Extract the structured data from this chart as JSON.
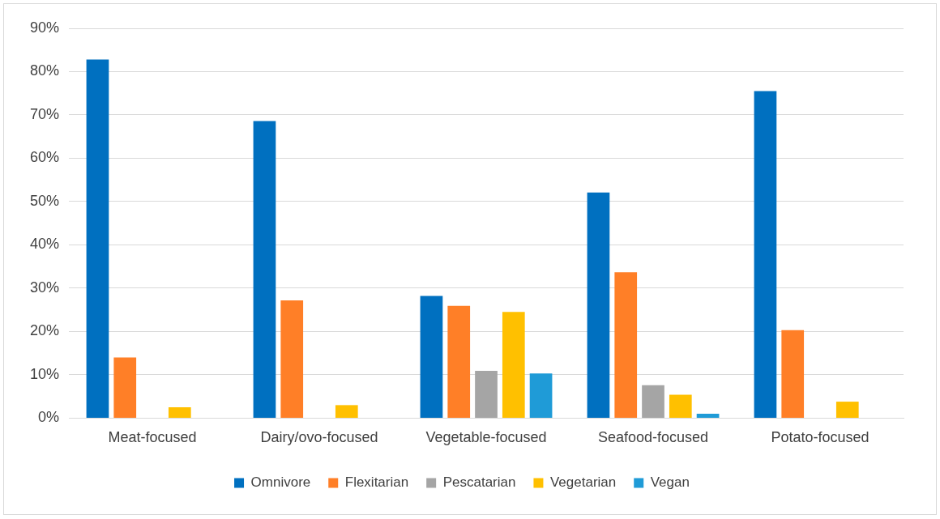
{
  "chart_data": {
    "type": "bar",
    "categories": [
      "Meat-focused",
      "Dairy/ovo-focused",
      "Vegetable-focused",
      "Seafood-focused",
      "Potato-focused"
    ],
    "series": [
      {
        "name": "Omnivore",
        "color": "#0070c0",
        "values": [
          82.8,
          68.6,
          28.2,
          52.1,
          75.5
        ]
      },
      {
        "name": "Flexitarian",
        "color": "#ff7f27",
        "values": [
          14,
          27.2,
          25.9,
          33.7,
          20.3
        ]
      },
      {
        "name": "Pescatarian",
        "color": "#a5a5a5",
        "values": [
          0,
          0,
          10.9,
          7.6,
          0
        ]
      },
      {
        "name": "Vegetarian",
        "color": "#ffc000",
        "values": [
          2.5,
          3,
          24.5,
          5.4,
          3.8
        ]
      },
      {
        "name": "Vegan",
        "color": "#1f9bd7",
        "values": [
          0,
          0,
          10.3,
          1,
          0
        ]
      }
    ],
    "ylim": [
      0,
      90
    ],
    "yticks": [
      {
        "value": 0,
        "label": "0%"
      },
      {
        "value": 10,
        "label": "10%"
      },
      {
        "value": 20,
        "label": "20%"
      },
      {
        "value": 30,
        "label": "30%"
      },
      {
        "value": 40,
        "label": "40%"
      },
      {
        "value": 50,
        "label": "50%"
      },
      {
        "value": 60,
        "label": "60%"
      },
      {
        "value": 70,
        "label": "70%"
      },
      {
        "value": 80,
        "label": "80%"
      },
      {
        "value": 90,
        "label": "90%"
      }
    ],
    "grid": "y",
    "legend": "bottom"
  }
}
